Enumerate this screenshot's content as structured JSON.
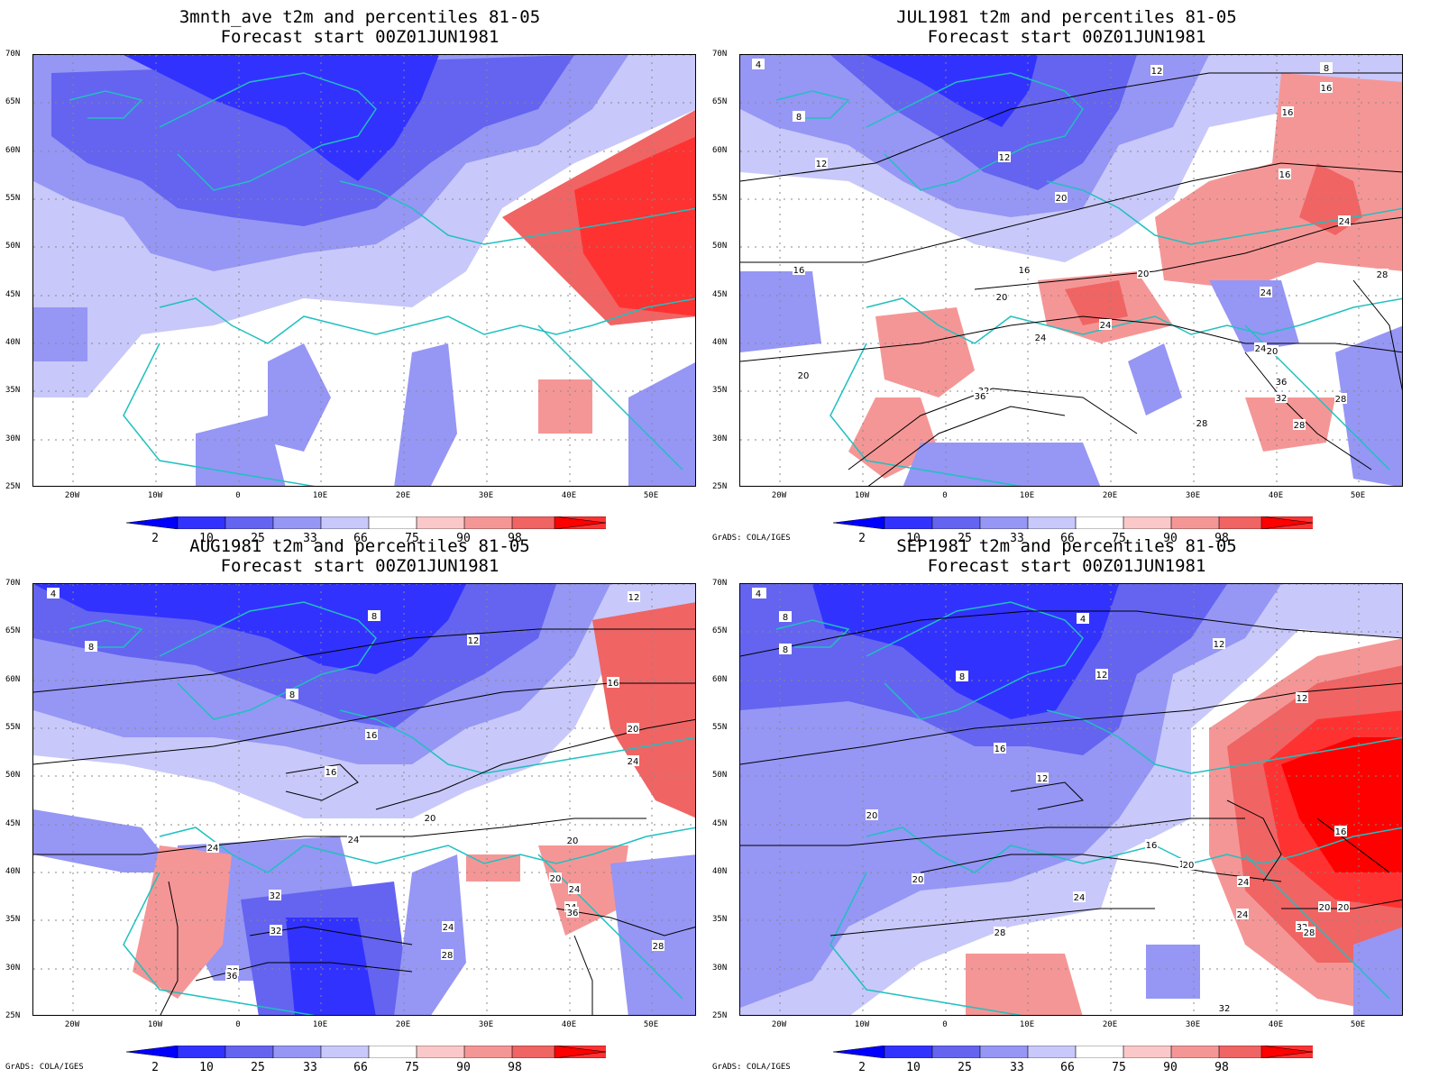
{
  "colorbar": {
    "labels": [
      "2",
      "10",
      "25",
      "33",
      "66",
      "75",
      "90",
      "98"
    ],
    "colors": [
      "#0000ff",
      "#3232ff",
      "#6464f0",
      "#9696f5",
      "#c8c8fa",
      "#ffffff",
      "#fac8c8",
      "#f59696",
      "#f06464",
      "#ff3232",
      "#ff0000"
    ]
  },
  "lat_labels": [
    "70N",
    "65N",
    "60N",
    "55N",
    "50N",
    "45N",
    "40N",
    "35N",
    "30N",
    "25N"
  ],
  "lon_labels": [
    "20W",
    "10W",
    "0",
    "10E",
    "20E",
    "30E",
    "40E",
    "50E"
  ],
  "credit": "GrADS: COLA/IGES",
  "panels": [
    {
      "title1": "3mnth_ave t2m and percentiles 81-05",
      "title2": "Forecast start 00Z01JUN1981",
      "show_credit": false,
      "contour_labels": []
    },
    {
      "title1": "JUL1981 t2m and percentiles 81-05",
      "title2": "Forecast start 00Z01JUN1981",
      "show_credit": true,
      "contour_labels": [
        "4",
        "12",
        "8",
        "12",
        "8",
        "16",
        "12",
        "16",
        "20",
        "16",
        "16",
        "24",
        "16",
        "20",
        "20",
        "28",
        "24",
        "24",
        "24",
        "20",
        "24",
        "20",
        "32",
        "36",
        "28",
        "28",
        "32",
        "36",
        "28"
      ]
    },
    {
      "title1": "AUG1981 t2m and percentiles 81-05",
      "title2": "Forecast start 00Z01JUN1981",
      "show_credit": true,
      "contour_labels": [
        "4",
        "8",
        "8",
        "12",
        "8",
        "12",
        "16",
        "16",
        "20",
        "24",
        "16",
        "20",
        "20",
        "24",
        "24",
        "20",
        "24",
        "24",
        "28",
        "32",
        "32",
        "36",
        "36",
        "28",
        "28",
        "24"
      ]
    },
    {
      "title1": "SEP1981 t2m and percentiles 81-05",
      "title2": "Forecast start 00Z01JUN1981",
      "show_credit": true,
      "contour_labels": [
        "4",
        "4",
        "8",
        "4",
        "8",
        "12",
        "8",
        "12",
        "12",
        "16",
        "12",
        "16",
        "20",
        "16",
        "20",
        "16",
        "20",
        "24",
        "24",
        "28",
        "20",
        "20",
        "32",
        "28",
        "32",
        "24"
      ]
    }
  ]
}
